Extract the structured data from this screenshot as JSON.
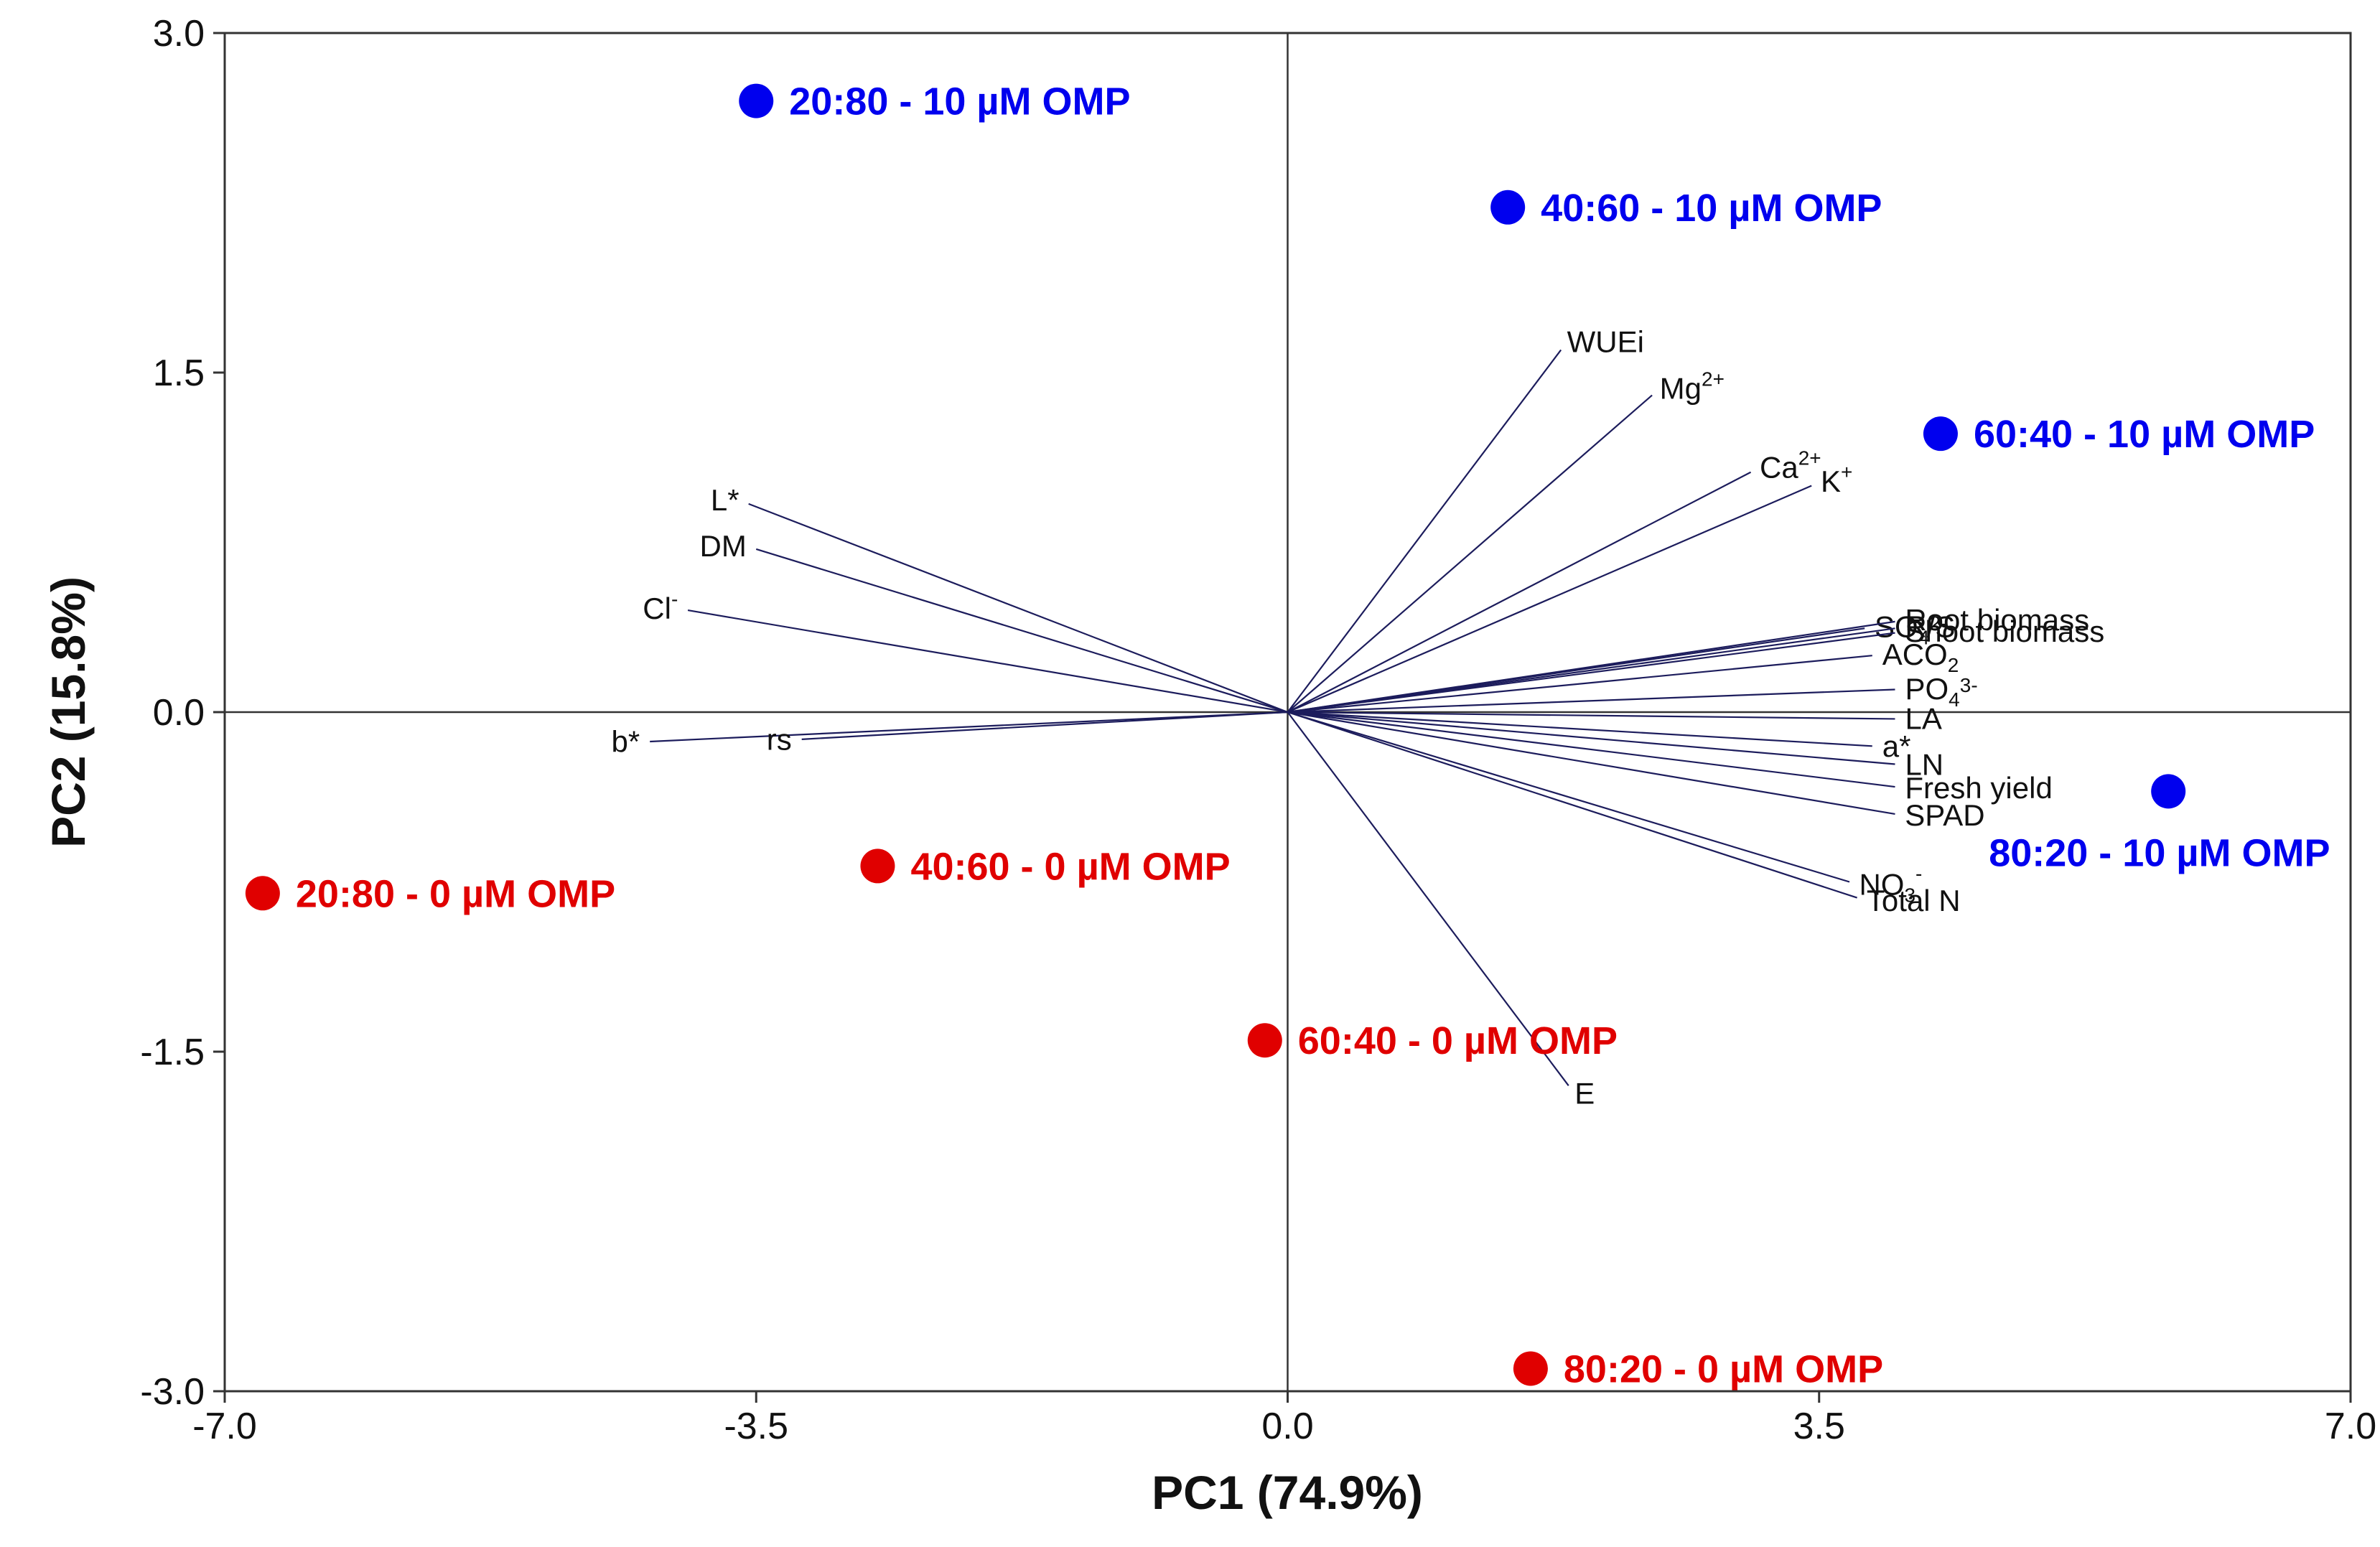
{
  "chart_data": {
    "type": "scatter",
    "subtype": "pca-biplot",
    "xlabel": "PC1 (74.9%)",
    "ylabel": "PC2 (15.8%)",
    "xlim": [
      -7.0,
      7.0
    ],
    "ylim": [
      -3.0,
      3.0
    ],
    "x_ticks": [
      {
        "value": -7.0,
        "label": "-7.0"
      },
      {
        "value": -3.5,
        "label": "-3.5"
      },
      {
        "value": 0.0,
        "label": "0.0"
      },
      {
        "value": 3.5,
        "label": "3.5"
      },
      {
        "value": 7.0,
        "label": "7.0"
      }
    ],
    "y_ticks": [
      {
        "value": 3.0,
        "label": "3.0"
      },
      {
        "value": 1.5,
        "label": "1.5"
      },
      {
        "value": 0.0,
        "label": "0.0"
      },
      {
        "value": -1.5,
        "label": "-1.5"
      },
      {
        "value": -3.0,
        "label": "-3.0"
      }
    ],
    "reference_lines": {
      "x": 0.0,
      "y": 0.0
    },
    "colors": {
      "omp10": "#0000ee",
      "omp0": "#e00000",
      "loading": "#1c1c5c",
      "axis": "#333333"
    },
    "series": [
      {
        "name": "10 µM OMP",
        "color": "#0000ee",
        "points": [
          {
            "x": -3.5,
            "y": 2.7,
            "label": "20:80 - 10  µM OMP"
          },
          {
            "x": 1.45,
            "y": 2.23,
            "label": "40:60 - 10  µM OMP"
          },
          {
            "x": 4.3,
            "y": 1.23,
            "label": "60:40 - 10  µM OMP"
          },
          {
            "x": 5.8,
            "y": -0.35,
            "label": "80:20 - 10 µM OMP"
          }
        ]
      },
      {
        "name": "0 µM OMP",
        "color": "#e00000",
        "points": [
          {
            "x": -6.75,
            "y": -0.8,
            "label": "20:80 - 0  µM OMP"
          },
          {
            "x": -2.7,
            "y": -0.68,
            "label": "40:60 - 0  µM OMP"
          },
          {
            "x": -0.15,
            "y": -1.45,
            "label": "60:40 - 0  µM OMP"
          },
          {
            "x": 1.6,
            "y": -2.9,
            "label": "80:20 - 0 µM OMP"
          }
        ]
      }
    ],
    "loadings": [
      {
        "name": "WUEi",
        "base": "WUEi",
        "sup": "",
        "sub": "",
        "sup2": "",
        "x": 1.8,
        "y": 1.6
      },
      {
        "name": "Mg2+",
        "base": "Mg",
        "sup": "2+",
        "sub": "",
        "sup2": "",
        "x": 2.4,
        "y": 1.4
      },
      {
        "name": "Ca2+",
        "base": "Ca",
        "sup": "2+",
        "sub": "",
        "sup2": "",
        "x": 3.05,
        "y": 1.06
      },
      {
        "name": "K+",
        "base": "K",
        "sup": "+",
        "sub": "",
        "sup2": "",
        "x": 3.45,
        "y": 1.0
      },
      {
        "name": "SO42-",
        "base": "SO",
        "sup": "",
        "sub": "4",
        "sup2": "2-",
        "x": 3.8,
        "y": 0.37
      },
      {
        "name": "Root biomass",
        "base": "Root biomass",
        "sup": "",
        "sub": "",
        "sup2": "",
        "x": 4.0,
        "y": 0.4
      },
      {
        "name": "R/S",
        "base": "R/S",
        "sup": "",
        "sub": "",
        "sup2": "",
        "x": 4.0,
        "y": 0.37
      },
      {
        "name": "Shoot biomass",
        "base": "Shoot biomass",
        "sup": "",
        "sub": "",
        "sup2": "",
        "x": 4.0,
        "y": 0.35
      },
      {
        "name": "ACO2",
        "base": "ACO",
        "sup": "",
        "sub": "2",
        "sup2": "",
        "x": 3.85,
        "y": 0.25
      },
      {
        "name": "PO43-",
        "base": "PO",
        "sup": "",
        "sub": "4",
        "sup2": "3-",
        "x": 4.0,
        "y": 0.1
      },
      {
        "name": "LA",
        "base": "LA",
        "sup": "",
        "sub": "",
        "sup2": "",
        "x": 4.0,
        "y": -0.03
      },
      {
        "name": "a*",
        "base": "a*",
        "sup": "",
        "sub": "",
        "sup2": "",
        "x": 3.85,
        "y": -0.15
      },
      {
        "name": "LN",
        "base": "LN",
        "sup": "",
        "sub": "",
        "sup2": "",
        "x": 4.0,
        "y": -0.23
      },
      {
        "name": "Fresh yield",
        "base": "Fresh yield",
        "sup": "",
        "sub": "",
        "sup2": "",
        "x": 4.0,
        "y": -0.33
      },
      {
        "name": "SPAD",
        "base": "SPAD",
        "sup": "",
        "sub": "",
        "sup2": "",
        "x": 4.0,
        "y": -0.45
      },
      {
        "name": "NO3-",
        "base": "NO",
        "sup": "-",
        "sub": "3",
        "sup2": "",
        "x": 3.7,
        "y": -0.75
      },
      {
        "name": "Total N",
        "base": "Total N",
        "sup": "",
        "sub": "",
        "sup2": "",
        "x": 3.75,
        "y": -0.82
      },
      {
        "name": "E",
        "base": "E",
        "sup": "",
        "sub": "",
        "sup2": "",
        "x": 1.85,
        "y": -1.65
      },
      {
        "name": "L*",
        "base": "L*",
        "sup": "",
        "sub": "",
        "sup2": "",
        "x": -3.55,
        "y": 0.92
      },
      {
        "name": "DM",
        "base": "DM",
        "sup": "",
        "sub": "",
        "sup2": "",
        "x": -3.5,
        "y": 0.72
      },
      {
        "name": "Cl-",
        "base": "Cl",
        "sup": "-",
        "sub": "",
        "sup2": "",
        "x": -3.95,
        "y": 0.45
      },
      {
        "name": "b*",
        "base": "b*",
        "sup": "",
        "sub": "",
        "sup2": "",
        "x": -4.2,
        "y": -0.13
      },
      {
        "name": "rs",
        "base": "rs",
        "sup": "",
        "sub": "",
        "sup2": "",
        "x": -3.2,
        "y": -0.12
      }
    ]
  }
}
